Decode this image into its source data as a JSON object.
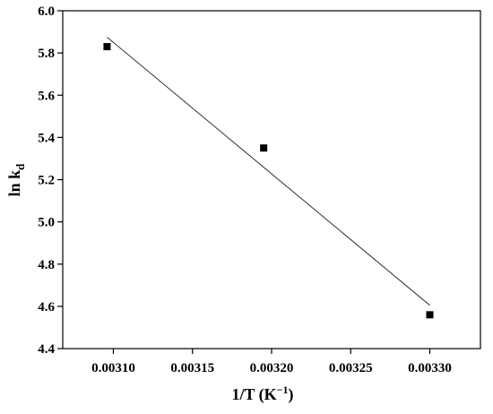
{
  "chart_data": {
    "type": "scatter",
    "xlabel": "1/T (K",
    "xlabel_sup": "−1",
    "xlabel_close": ")",
    "ylabel": "ln k",
    "ylabel_sub": "d",
    "xlim": [
      0.003068,
      0.003332
    ],
    "ylim": [
      4.4,
      6.0
    ],
    "x_ticks": [
      0.0031,
      0.00315,
      0.0032,
      0.00325,
      0.0033
    ],
    "x_tick_labels": [
      "0.00310",
      "0.00315",
      "0.00320",
      "0.00325",
      "0.00330"
    ],
    "y_ticks": [
      4.4,
      4.6,
      4.8,
      5.0,
      5.2,
      5.4,
      5.6,
      5.8,
      6.0
    ],
    "y_tick_labels": [
      "4.4",
      "4.6",
      "4.8",
      "5.0",
      "5.2",
      "5.4",
      "5.6",
      "5.8",
      "6.0"
    ],
    "points": [
      {
        "x": 0.003096,
        "y": 5.83
      },
      {
        "x": 0.003195,
        "y": 5.35
      },
      {
        "x": 0.0033,
        "y": 4.56
      }
    ],
    "fit_line": {
      "x": [
        0.003096,
        0.0033
      ],
      "y": [
        5.875,
        4.605
      ]
    },
    "grid": false,
    "legend": "none",
    "marker_shape": "square",
    "marker_color": "#000000",
    "line_color": "#333333"
  }
}
